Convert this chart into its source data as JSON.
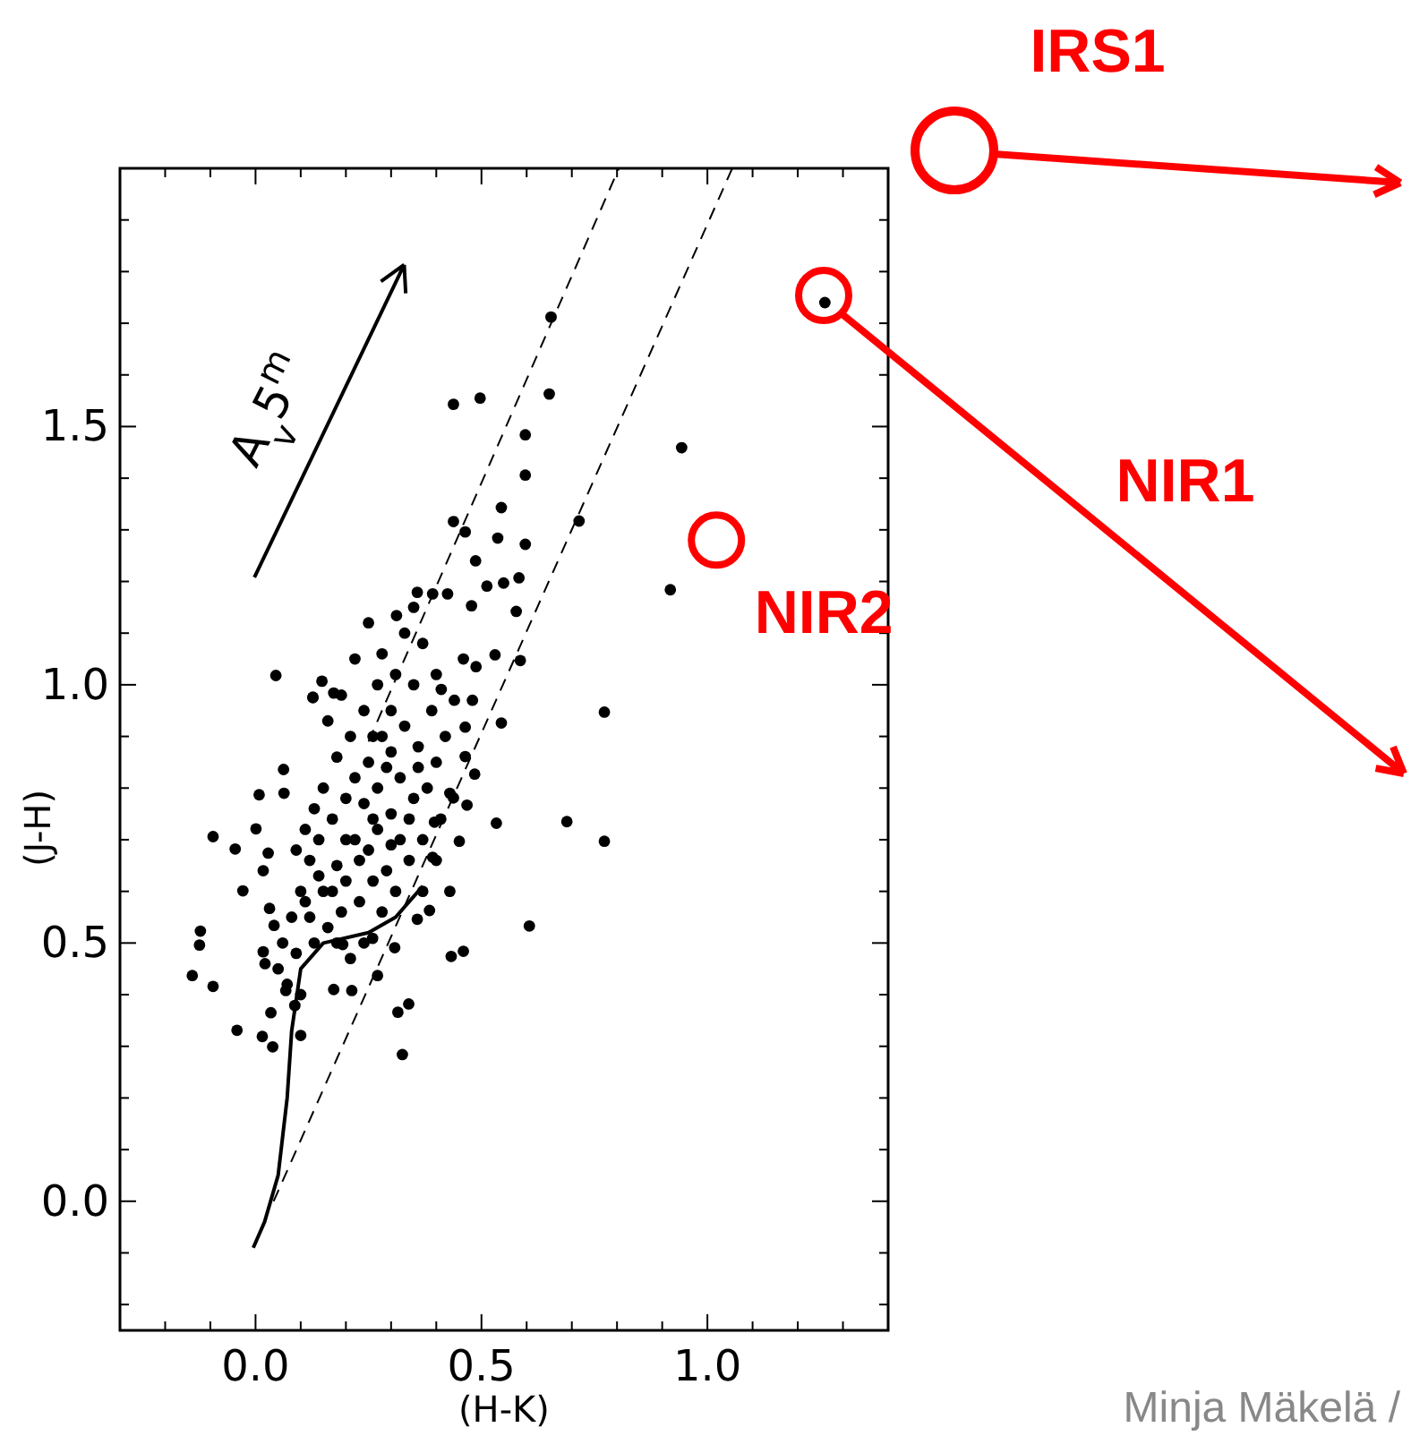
{
  "chart_data": {
    "type": "scatter",
    "xlabel": "(H-K)",
    "ylabel": "(J-H)",
    "xlim": [
      -0.3,
      1.4
    ],
    "ylim": [
      -0.25,
      2.0
    ],
    "grid": false,
    "marker": "circle",
    "xticks": [
      {
        "value": -0.3,
        "label": null
      },
      {
        "value": -0.2,
        "label": null
      },
      {
        "value": -0.1,
        "label": null
      },
      {
        "value": 0,
        "label": "0.0"
      },
      {
        "value": 0.1,
        "label": null
      },
      {
        "value": 0.2,
        "label": null
      },
      {
        "value": 0.3,
        "label": null
      },
      {
        "value": 0.4,
        "label": null
      },
      {
        "value": 0.5,
        "label": "0.5"
      },
      {
        "value": 0.6,
        "label": null
      },
      {
        "value": 0.7,
        "label": null
      },
      {
        "value": 0.8,
        "label": null
      },
      {
        "value": 0.9,
        "label": null
      },
      {
        "value": 1.0,
        "label": "1.0"
      },
      {
        "value": 1.1,
        "label": null
      },
      {
        "value": 1.2,
        "label": null
      },
      {
        "value": 1.3,
        "label": null
      },
      {
        "value": 1.4,
        "label": null
      }
    ],
    "yticks": [
      {
        "value": -0.2,
        "label": null
      },
      {
        "value": -0.1,
        "label": null
      },
      {
        "value": 0,
        "label": "0.0"
      },
      {
        "value": 0.1,
        "label": null
      },
      {
        "value": 0.2,
        "label": null
      },
      {
        "value": 0.3,
        "label": null
      },
      {
        "value": 0.4,
        "label": null
      },
      {
        "value": 0.5,
        "label": "0.5"
      },
      {
        "value": 0.6,
        "label": null
      },
      {
        "value": 0.7,
        "label": null
      },
      {
        "value": 0.8,
        "label": null
      },
      {
        "value": 0.9,
        "label": null
      },
      {
        "value": 1.0,
        "label": "1.0"
      },
      {
        "value": 1.1,
        "label": null
      },
      {
        "value": 1.2,
        "label": null
      },
      {
        "value": 1.3,
        "label": null
      },
      {
        "value": 1.4,
        "label": null
      },
      {
        "value": 1.5,
        "label": "1.5"
      },
      {
        "value": 1.6,
        "label": null
      },
      {
        "value": 1.7,
        "label": null
      },
      {
        "value": 1.8,
        "label": null
      },
      {
        "value": 1.9,
        "label": null
      }
    ],
    "annotations": [
      "A$_{v}$5$^{m}$",
      "NIR1",
      {
        "text": "NIR2",
        "x": 1.02,
        "y": 1.28
      },
      "IRS1",
      "Minja Mäkelä /"
    ],
    "series": [
      {
        "color": "#000000",
        "x": [
          0.654,
          0.438,
          0.497,
          0.65,
          0.597,
          0.943,
          0.597,
          0.544,
          0.438,
          0.464,
          0.716,
          0.536,
          0.597,
          0.487,
          0.512,
          0.549,
          0.583,
          0.918,
          0.045,
          0.772,
          0.53,
          0.577,
          0.358,
          0.392,
          0.425,
          0.312,
          0.478,
          0.488,
          0.586,
          0.544,
          0.464,
          0.147,
          0.127,
          0.173,
          0.689,
          0.772,
          0.533,
          0.606,
          0.46,
          0.433,
          0.339,
          0.315,
          0.325,
          -0.094,
          -0.045,
          -0.028,
          -0.122,
          -0.124,
          -0.14,
          -0.094,
          -0.041,
          0.015,
          0.038,
          0.008,
          0.063,
          0.028,
          0.017,
          0.001,
          0.031,
          0.041,
          0.017,
          0.021,
          0.034,
          0.067,
          0.1,
          0.087,
          0.173,
          0.213,
          0.27,
          0.259,
          0.308,
          0.193,
          0.385,
          0.358,
          0.48,
          0.411,
          0.464,
          0.485,
          0.468,
          0.451,
          0.392,
          0.438,
          0.396,
          0.062,
          0.127,
          1.26,
          0.12,
          0.15,
          0.18,
          0.2,
          0.22,
          0.25,
          0.27,
          0.3,
          0.32,
          0.35,
          0.38,
          0.4,
          0.36,
          0.33,
          0.3,
          0.28,
          0.25,
          0.22,
          0.2,
          0.17,
          0.14,
          0.12,
          0.1,
          0.08,
          0.06,
          0.09,
          0.13,
          0.16,
          0.19,
          0.23,
          0.26,
          0.29,
          0.31,
          0.34,
          0.37,
          0.41,
          0.43,
          0.42,
          0.39,
          0.35,
          0.31,
          0.27,
          0.24,
          0.21,
          0.18,
          0.15,
          0.13,
          0.11,
          0.24,
          0.27,
          0.29,
          0.32,
          0.34,
          0.3,
          0.26,
          0.23,
          0.2,
          0.17,
          0.14,
          0.11,
          0.07,
          0.1,
          0.05,
          0.28,
          0.33,
          0.22,
          0.37,
          0.4,
          0.44,
          0.46,
          0.25,
          0.35,
          0.19,
          0.16,
          0.4,
          0.43,
          0.37,
          0.28,
          0.24,
          0.21,
          0.3,
          0.26,
          0.36,
          0.09,
          0.18
        ],
        "values": [
          1.712,
          1.543,
          1.555,
          1.563,
          1.484,
          1.459,
          1.406,
          1.343,
          1.316,
          1.296,
          1.317,
          1.284,
          1.272,
          1.24,
          1.191,
          1.197,
          1.207,
          1.184,
          1.018,
          0.947,
          1.058,
          1.142,
          1.179,
          1.176,
          1.176,
          1.134,
          1.153,
          1.035,
          1.047,
          0.926,
          0.918,
          1.007,
          0.975,
          0.984,
          0.735,
          0.697,
          0.732,
          0.533,
          0.484,
          0.474,
          0.382,
          0.366,
          0.284,
          0.706,
          0.682,
          0.601,
          0.523,
          0.496,
          0.437,
          0.416,
          0.331,
          0.319,
          0.299,
          0.787,
          0.79,
          0.674,
          0.64,
          0.721,
          0.567,
          0.534,
          0.483,
          0.46,
          0.365,
          0.408,
          0.321,
          0.379,
          0.41,
          0.408,
          0.437,
          0.509,
          0.491,
          0.497,
          0.563,
          0.546,
          0.97,
          0.991,
          0.861,
          0.827,
          0.767,
          0.697,
          0.666,
          0.781,
          0.734,
          0.836,
          0.976,
          1.74,
          0.55,
          0.6,
          0.65,
          0.62,
          0.7,
          0.68,
          0.72,
          0.75,
          0.7,
          0.78,
          0.8,
          0.85,
          0.88,
          0.92,
          0.95,
          0.9,
          0.85,
          0.82,
          0.78,
          0.74,
          0.7,
          0.66,
          0.6,
          0.55,
          0.5,
          0.48,
          0.5,
          0.53,
          0.56,
          0.58,
          0.62,
          0.64,
          0.6,
          0.66,
          0.7,
          0.74,
          0.79,
          0.9,
          0.95,
          1.0,
          1.02,
          1.0,
          0.95,
          0.9,
          0.86,
          0.8,
          0.76,
          0.72,
          0.77,
          0.8,
          0.84,
          0.82,
          0.74,
          0.69,
          0.74,
          0.66,
          0.7,
          0.6,
          0.63,
          0.58,
          0.42,
          0.4,
          0.45,
          1.06,
          1.1,
          1.05,
          1.08,
          1.02,
          0.97,
          1.05,
          1.12,
          1.15,
          0.98,
          0.93,
          0.66,
          0.6,
          0.6,
          0.56,
          0.5,
          0.47,
          0.87,
          0.9,
          0.84,
          0.68,
          0.5
        ]
      },
      {
        "type": "line",
        "color": "#000000",
        "line_style": "solid",
        "marker": "none",
        "x": [
          -0.005,
          0.02,
          0.05,
          0.07,
          0.08,
          0.1,
          0.15,
          0.25,
          0.31,
          0.37
        ],
        "values": [
          -0.09,
          -0.04,
          0.05,
          0.2,
          0.33,
          0.45,
          0.5,
          0.52,
          0.55,
          0.61
        ]
      },
      {
        "type": "line",
        "color": "#000000",
        "line_style": "dashed",
        "marker": "none",
        "x": [
          0.25,
          0.804
        ],
        "values": [
          0.89,
          2.0
        ]
      },
      {
        "type": "line",
        "color": "#000000",
        "line_style": "dashed",
        "marker": "none",
        "x": [
          0.04,
          1.055
        ],
        "values": [
          0.0,
          2.0
        ]
      }
    ]
  }
}
